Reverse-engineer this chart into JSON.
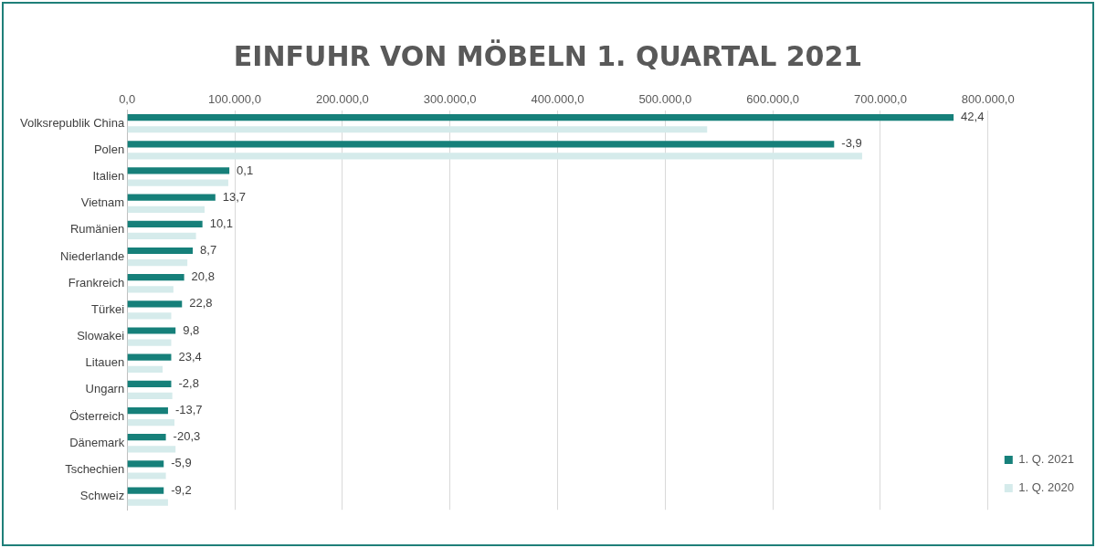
{
  "chart_data": {
    "type": "bar",
    "orientation": "horizontal",
    "title": "EINFUHR VON MÖBELN 1. QUARTAL 2021",
    "categories": [
      "Volksrepublik China",
      "Polen",
      "Italien",
      "Vietnam",
      "Rumänien",
      "Niederlande",
      "Frankreich",
      "Türkei",
      "Slowakei",
      "Litauen",
      "Ungarn",
      "Österreich",
      "Dänemark",
      "Tschechien",
      "Schweiz"
    ],
    "series": [
      {
        "name": "1. Q. 2021",
        "color": "#16807a",
        "values": [
          768000,
          657000,
          95000,
          82000,
          70000,
          61000,
          53000,
          51000,
          45000,
          41000,
          41000,
          38000,
          36000,
          34000,
          34000
        ]
      },
      {
        "name": "1. Q. 2020",
        "color": "#d5ebeb",
        "values": [
          539000,
          683000,
          94000,
          72000,
          64000,
          56000,
          43000,
          41000,
          41000,
          33000,
          42000,
          44000,
          45000,
          36000,
          38000
        ]
      }
    ],
    "annotations": [
      {
        "text": "42,4",
        "x": 768000,
        "y": "Volksrepublik China"
      },
      {
        "text": "-3,9",
        "x": 657000,
        "y": "Polen"
      },
      {
        "text": "0,1",
        "x": 95000,
        "y": "Italien"
      },
      {
        "text": "13,7",
        "x": 82000,
        "y": "Vietnam"
      },
      {
        "text": "10,1",
        "x": 70000,
        "y": "Rumänien"
      },
      {
        "text": "8,7",
        "x": 61000,
        "y": "Niederlande"
      },
      {
        "text": "20,8",
        "x": 53000,
        "y": "Frankreich"
      },
      {
        "text": "22,8",
        "x": 51000,
        "y": "Türkei"
      },
      {
        "text": "9,8",
        "x": 45000,
        "y": "Slowakei"
      },
      {
        "text": "23,4",
        "x": 41000,
        "y": "Litauen"
      },
      {
        "text": "-2,8",
        "x": 41000,
        "y": "Ungarn"
      },
      {
        "text": "-13,7",
        "x": 38000,
        "y": "Österreich"
      },
      {
        "text": "-20,3",
        "x": 36000,
        "y": "Dänemark"
      },
      {
        "text": "-5,9",
        "x": 34000,
        "y": "Tschechien"
      },
      {
        "text": "-9,2",
        "x": 34000,
        "y": "Schweiz"
      }
    ],
    "xlim": [
      0,
      800000
    ],
    "xticks": [
      {
        "value": 0,
        "label": "0,0"
      },
      {
        "value": 100000,
        "label": "100.000,0"
      },
      {
        "value": 200000,
        "label": "200.000,0"
      },
      {
        "value": 300000,
        "label": "300.000,0"
      },
      {
        "value": 400000,
        "label": "400.000,0"
      },
      {
        "value": 500000,
        "label": "500.000,0"
      },
      {
        "value": 600000,
        "label": "600.000,0"
      },
      {
        "value": 700000,
        "label": "700.000,0"
      },
      {
        "value": 800000,
        "label": "800.000,0"
      }
    ],
    "grid": "x",
    "legend": "right"
  }
}
